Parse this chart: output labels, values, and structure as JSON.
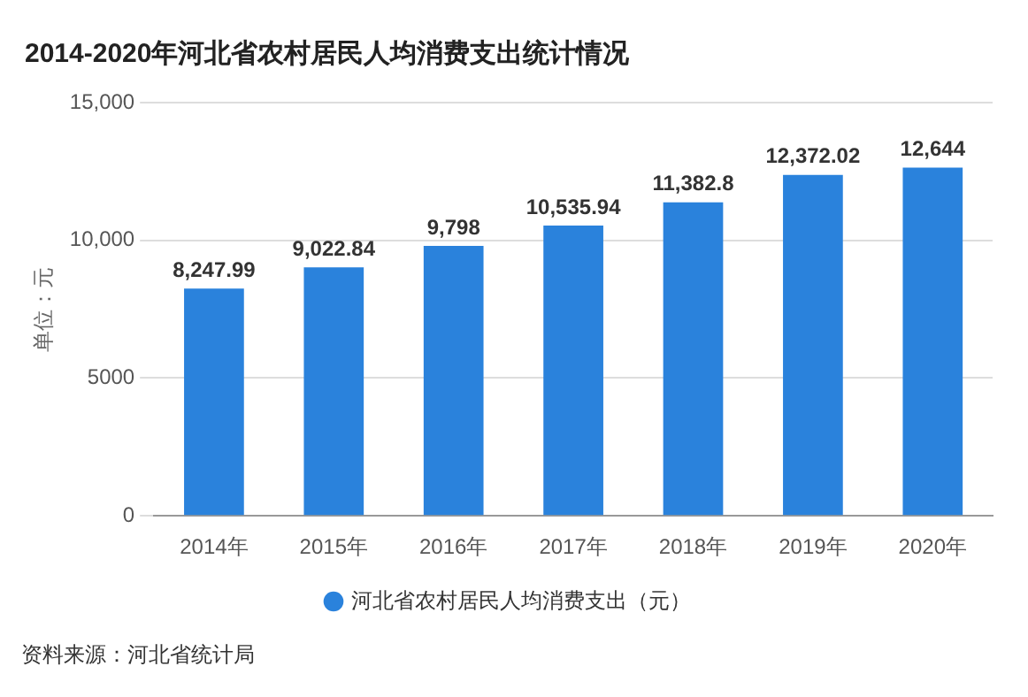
{
  "chart_data": {
    "type": "bar",
    "title": "2014-2020年河北省农村居民人均消费支出统计情况",
    "ylabel": "单位：元",
    "categories": [
      "2014年",
      "2015年",
      "2016年",
      "2017年",
      "2018年",
      "2019年",
      "2020年"
    ],
    "series": [
      {
        "name": "河北省农村居民人均消费支出（元）",
        "color": "#2a82dc",
        "values": [
          8247.99,
          9022.84,
          9798,
          10535.94,
          11382.8,
          12372.02,
          12644
        ],
        "value_labels": [
          "8,247.99",
          "9,022.84",
          "9,798",
          "10,535.94",
          "11,382.8",
          "12,372.02",
          "12,644"
        ]
      }
    ],
    "ylim": [
      0,
      15000
    ],
    "yticks": [
      0,
      5000,
      {
        "value": 10000,
        "label": "10,000"
      },
      {
        "value": 15000,
        "label": "15,000"
      }
    ],
    "grid": "y",
    "legend": "bottom",
    "annotations": [
      "资料来源：河北省统计局"
    ]
  }
}
